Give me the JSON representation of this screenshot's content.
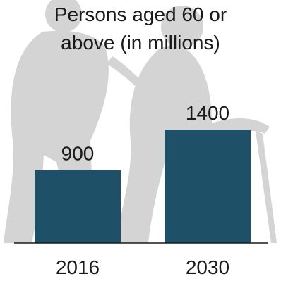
{
  "chart_data": {
    "type": "bar",
    "title_lines": [
      "Persons aged 60 or",
      "above (in millions)"
    ],
    "categories": [
      "2016",
      "2030"
    ],
    "values": [
      900,
      1400
    ],
    "data_labels": [
      "900",
      "1400"
    ],
    "ylim": [
      0,
      1400
    ],
    "grid": false,
    "legend": "none",
    "bar_color": "#1e5068",
    "axis_color": "#1a1a1a",
    "background_icon": "elderly-couple-with-cane-silhouette",
    "background_icon_color": "#d4d4d4"
  }
}
